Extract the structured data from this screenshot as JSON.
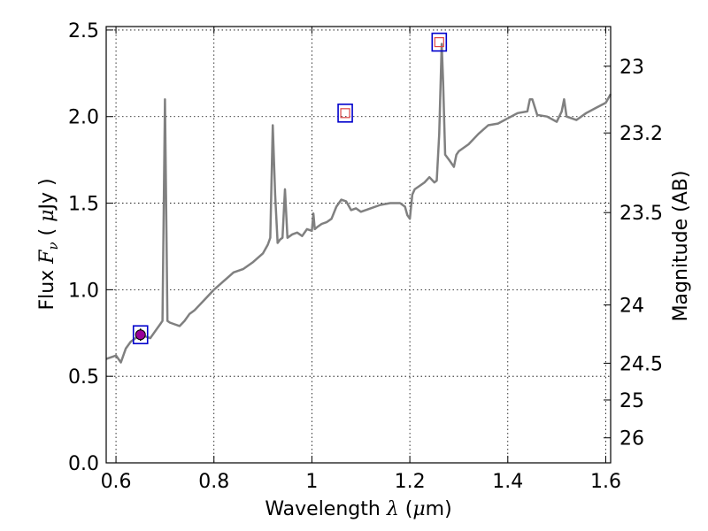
{
  "chart_data": {
    "type": "line",
    "xlabel": "Wavelength  λ (μm)",
    "ylabel": "Flux  Fν  ( μJy )",
    "ylabel_right": "Magnitude (AB)",
    "xlim": [
      0.58,
      1.61
    ],
    "ylim": [
      0.0,
      2.52
    ],
    "grid": true,
    "x_ticks": [
      {
        "value": 0.6,
        "label": "0.6"
      },
      {
        "value": 0.8,
        "label": "0.8"
      },
      {
        "value": 1.0,
        "label": "1"
      },
      {
        "value": 1.2,
        "label": "1.2"
      },
      {
        "value": 1.4,
        "label": "1.4"
      },
      {
        "value": 1.6,
        "label": "1.6"
      }
    ],
    "y_ticks": [
      {
        "value": 0.0,
        "label": "0.0"
      },
      {
        "value": 0.5,
        "label": "0.5"
      },
      {
        "value": 1.0,
        "label": "1.0"
      },
      {
        "value": 1.5,
        "label": "1.5"
      },
      {
        "value": 2.0,
        "label": "2.0"
      },
      {
        "value": 2.5,
        "label": "2.5"
      }
    ],
    "right_ticks": [
      {
        "mag": 23,
        "label": "23"
      },
      {
        "mag": 23.2,
        "label": "23.2"
      },
      {
        "mag": 23.5,
        "label": "23.5"
      },
      {
        "mag": 24,
        "label": "24"
      },
      {
        "mag": 24.5,
        "label": "24.5"
      },
      {
        "mag": 25,
        "label": "25"
      },
      {
        "mag": 26,
        "label": "26"
      }
    ],
    "series": [
      {
        "color": "#808080",
        "x": [
          0.58,
          0.6,
          0.61,
          0.62,
          0.63,
          0.64,
          0.65,
          0.66,
          0.67,
          0.68,
          0.69,
          0.695,
          0.7,
          0.705,
          0.71,
          0.72,
          0.73,
          0.74,
          0.75,
          0.76,
          0.78,
          0.8,
          0.82,
          0.84,
          0.86,
          0.88,
          0.9,
          0.91,
          0.915,
          0.92,
          0.925,
          0.93,
          0.935,
          0.94,
          0.945,
          0.95,
          0.96,
          0.97,
          0.98,
          0.99,
          1.0,
          1.003,
          1.006,
          1.01,
          1.02,
          1.03,
          1.04,
          1.05,
          1.06,
          1.07,
          1.08,
          1.09,
          1.1,
          1.12,
          1.14,
          1.16,
          1.18,
          1.19,
          1.195,
          1.2,
          1.205,
          1.21,
          1.22,
          1.23,
          1.24,
          1.25,
          1.255,
          1.26,
          1.265,
          1.268,
          1.272,
          1.28,
          1.29,
          1.295,
          1.3,
          1.32,
          1.34,
          1.36,
          1.38,
          1.4,
          1.42,
          1.44,
          1.445,
          1.45,
          1.46,
          1.48,
          1.5,
          1.51,
          1.515,
          1.52,
          1.54,
          1.56,
          1.58,
          1.6,
          1.61
        ],
        "y": [
          0.6,
          0.62,
          0.58,
          0.66,
          0.7,
          0.72,
          0.74,
          0.73,
          0.72,
          0.76,
          0.8,
          0.82,
          2.1,
          0.82,
          0.81,
          0.8,
          0.79,
          0.82,
          0.86,
          0.88,
          0.94,
          1.0,
          1.05,
          1.1,
          1.12,
          1.16,
          1.21,
          1.26,
          1.3,
          1.95,
          1.55,
          1.27,
          1.29,
          1.3,
          1.58,
          1.3,
          1.32,
          1.33,
          1.31,
          1.35,
          1.34,
          1.44,
          1.35,
          1.36,
          1.38,
          1.39,
          1.41,
          1.48,
          1.52,
          1.51,
          1.46,
          1.47,
          1.45,
          1.47,
          1.49,
          1.5,
          1.5,
          1.48,
          1.43,
          1.41,
          1.55,
          1.58,
          1.6,
          1.62,
          1.65,
          1.62,
          1.63,
          1.9,
          2.42,
          2.2,
          1.78,
          1.75,
          1.71,
          1.78,
          1.8,
          1.84,
          1.9,
          1.95,
          1.96,
          1.99,
          2.02,
          2.03,
          2.1,
          2.1,
          2.01,
          2.0,
          1.97,
          2.03,
          2.1,
          2.0,
          1.98,
          2.02,
          2.05,
          2.08,
          2.13
        ]
      }
    ],
    "photometry": [
      {
        "x": 0.65,
        "y": 0.74,
        "box_color": "#0000cc",
        "marker_color": "#990099",
        "marker": "filled-circle-with-errorbar",
        "yerr": 0.02
      },
      {
        "x": 1.068,
        "y": 2.02,
        "box_color": "#0000cc",
        "marker_color": "#dd4444",
        "marker": "open-square"
      },
      {
        "x": 1.26,
        "y": 2.43,
        "box_color": "#0000cc",
        "marker_color": "#dd4444",
        "marker": "open-square"
      }
    ]
  }
}
